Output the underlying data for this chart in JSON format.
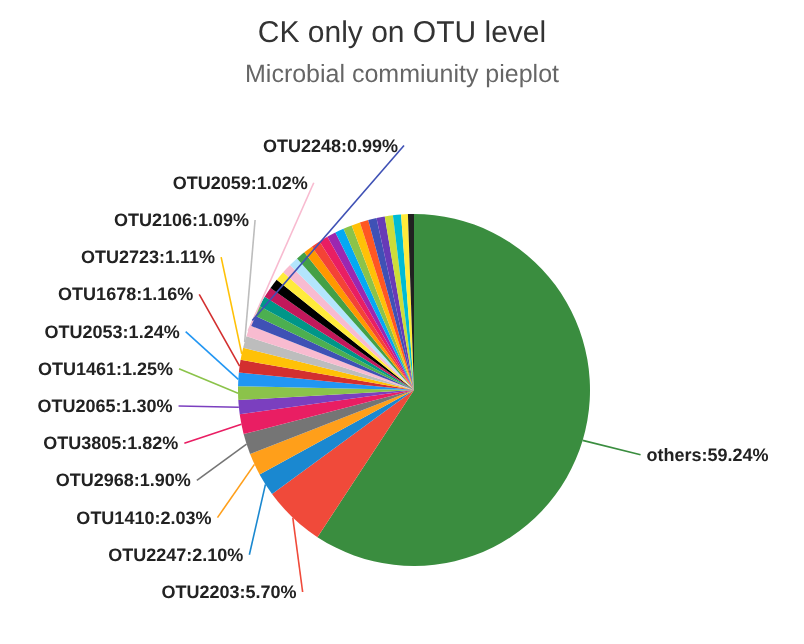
{
  "chart_data": {
    "type": "pie",
    "title": "CK only on OTU level",
    "subtitle": "Microbial commiunity pieplot",
    "categories": [
      "others:59.24%",
      "OTU2203:5.70%",
      "OTU2247:2.10%",
      "OTU1410:2.03%",
      "OTU2968:1.90%",
      "OTU3805:1.82%",
      "OTU2065:1.30%",
      "OTU1461:1.25%",
      "OTU2053:1.24%",
      "OTU1678:1.16%",
      "OTU2723:1.11%",
      "OTU2106:1.09%",
      "OTU2059:1.02%",
      "OTU2248:0.99%",
      null,
      null,
      null,
      null,
      null,
      null,
      null,
      null,
      null,
      null,
      null,
      null,
      null,
      null,
      null,
      null,
      null,
      null,
      null,
      null,
      null,
      null
    ],
    "values": [
      59.24,
      5.7,
      2.1,
      2.03,
      1.9,
      1.82,
      1.3,
      1.25,
      1.24,
      1.16,
      1.11,
      1.09,
      1.02,
      0.99,
      0.97,
      0.96,
      0.95,
      0.93,
      0.91,
      0.89,
      0.87,
      0.86,
      0.85,
      0.84,
      0.83,
      0.82,
      0.81,
      0.8,
      0.79,
      0.78,
      0.77,
      0.76,
      0.75,
      0.74,
      0.62,
      0.55
    ],
    "colors": [
      "#3a8d3f",
      "#f04a3a",
      "#1a88d0",
      "#ff9f1a",
      "#757575",
      "#e91e63",
      "#7b3fbf",
      "#8bc34a",
      "#2196f3",
      "#d32f2f",
      "#ffc107",
      "#bdbdbd",
      "#f8bbd0",
      "#3f51b5",
      "#4caf50",
      "#009688",
      "#c2185b",
      "#000000",
      "#ffeb3b",
      "#f8bbd0",
      "#b3e5fc",
      "#43a047",
      "#ff9800",
      "#f44336",
      "#e91e63",
      "#9c27b0",
      "#03a9f4",
      "#8bc34a",
      "#ffc107",
      "#ff5722",
      "#3f51b5",
      "#673ab7",
      "#cddc39",
      "#00bcd4",
      "#ffeb3b",
      "#212121"
    ]
  }
}
